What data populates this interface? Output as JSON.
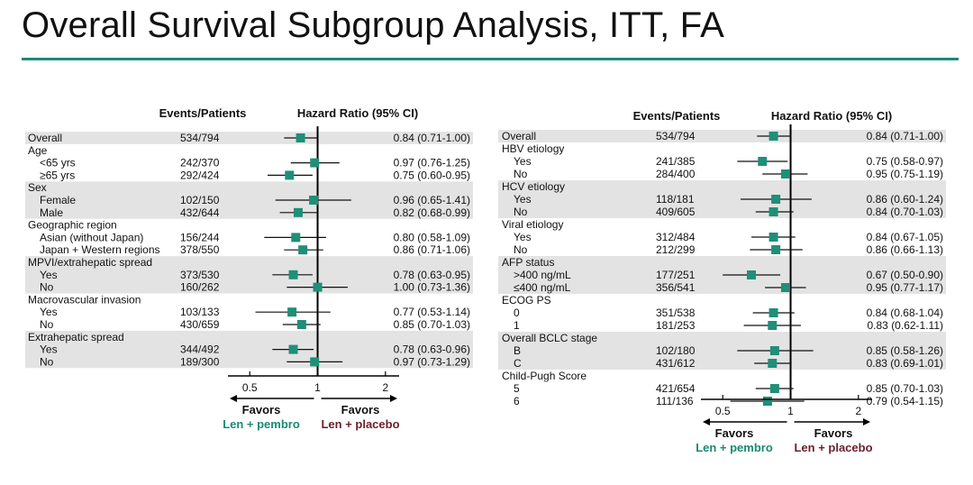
{
  "title": "Overall Survival Subgroup Analysis, ITT, FA",
  "colors": {
    "accent": "#1a8a74",
    "marker": "#1f8f78",
    "favor_left": "#1a8a74",
    "favor_right": "#6b1f2a",
    "shade": "#e3e3e3"
  },
  "chart_data": [
    {
      "type": "forest",
      "x_scale": "log",
      "xlim": [
        0.4,
        2.3
      ],
      "reference_line": 1,
      "header_events": "Events/Patients",
      "header_hr": "Hazard  Ratio (95% CI)",
      "ticks": [
        {
          "value": 0.5,
          "label": "0.5"
        },
        {
          "value": 1,
          "label": "1"
        },
        {
          "value": 2,
          "label": "2"
        }
      ],
      "favors_left": {
        "line1": "Favors",
        "line2": "Len + pembro"
      },
      "favors_right": {
        "line1": "Favors",
        "line2": "Len + placebo"
      },
      "rows": [
        {
          "label": "Overall",
          "indent": false,
          "shaded": true,
          "events": "534/794",
          "hr": 0.84,
          "lo": 0.71,
          "hi": 1.0,
          "ci_text": "0.84 (0.71-1.00)"
        },
        {
          "label": "Age",
          "indent": false,
          "shaded": false
        },
        {
          "label": "<65 yrs",
          "indent": true,
          "shaded": false,
          "events": "242/370",
          "hr": 0.97,
          "lo": 0.76,
          "hi": 1.25,
          "ci_text": "0.97 (0.76-1.25)"
        },
        {
          "label": "≥65 yrs",
          "indent": true,
          "shaded": false,
          "events": "292/424",
          "hr": 0.75,
          "lo": 0.6,
          "hi": 0.95,
          "ci_text": "0.75 (0.60-0.95)"
        },
        {
          "label": "Sex",
          "indent": false,
          "shaded": true
        },
        {
          "label": "Female",
          "indent": true,
          "shaded": true,
          "events": "102/150",
          "hr": 0.96,
          "lo": 0.65,
          "hi": 1.41,
          "ci_text": "0.96 (0.65-1.41)"
        },
        {
          "label": "Male",
          "indent": true,
          "shaded": true,
          "events": "432/644",
          "hr": 0.82,
          "lo": 0.68,
          "hi": 0.99,
          "ci_text": "0.82 (0.68-0.99)"
        },
        {
          "label": "Geographic region",
          "indent": false,
          "shaded": false
        },
        {
          "label": "Asian (without Japan)",
          "indent": true,
          "shaded": false,
          "events": "156/244",
          "hr": 0.8,
          "lo": 0.58,
          "hi": 1.09,
          "ci_text": "0.80 (0.58-1.09)"
        },
        {
          "label": "Japan + Western regions",
          "indent": true,
          "shaded": false,
          "events": "378/550",
          "hr": 0.86,
          "lo": 0.71,
          "hi": 1.06,
          "ci_text": "0.86 (0.71-1.06)"
        },
        {
          "label": "MPVI/extrahepatic spread",
          "indent": false,
          "shaded": true
        },
        {
          "label": "Yes",
          "indent": true,
          "shaded": true,
          "events": "373/530",
          "hr": 0.78,
          "lo": 0.63,
          "hi": 0.95,
          "ci_text": "0.78 (0.63-0.95)"
        },
        {
          "label": "No",
          "indent": true,
          "shaded": true,
          "events": "160/262",
          "hr": 1.0,
          "lo": 0.73,
          "hi": 1.36,
          "ci_text": "1.00 (0.73-1.36)"
        },
        {
          "label": "Macrovascular invasion",
          "indent": false,
          "shaded": false
        },
        {
          "label": "Yes",
          "indent": true,
          "shaded": false,
          "events": "103/133",
          "hr": 0.77,
          "lo": 0.53,
          "hi": 1.14,
          "ci_text": "0.77 (0.53-1.14)"
        },
        {
          "label": "No",
          "indent": true,
          "shaded": false,
          "events": "430/659",
          "hr": 0.85,
          "lo": 0.7,
          "hi": 1.03,
          "ci_text": "0.85 (0.70-1.03)"
        },
        {
          "label": "Extrahepatic spread",
          "indent": false,
          "shaded": true
        },
        {
          "label": "Yes",
          "indent": true,
          "shaded": true,
          "events": "344/492",
          "hr": 0.78,
          "lo": 0.63,
          "hi": 0.96,
          "ci_text": "0.78 (0.63-0.96)"
        },
        {
          "label": "No",
          "indent": true,
          "shaded": true,
          "events": "189/300",
          "hr": 0.97,
          "lo": 0.73,
          "hi": 1.29,
          "ci_text": "0.97 (0.73-1.29)"
        }
      ]
    },
    {
      "type": "forest",
      "x_scale": "log",
      "xlim": [
        0.4,
        2.3
      ],
      "reference_line": 1,
      "header_events": "Events/Patients",
      "header_hr": "Hazard  Ratio (95% CI)",
      "ticks": [
        {
          "value": 0.5,
          "label": "0.5"
        },
        {
          "value": 1,
          "label": "1"
        },
        {
          "value": 2,
          "label": "2"
        }
      ],
      "favors_left": {
        "line1": "Favors",
        "line2": "Len + pembro"
      },
      "favors_right": {
        "line1": "Favors",
        "line2": "Len + placebo"
      },
      "rows": [
        {
          "label": "Overall",
          "indent": false,
          "shaded": true,
          "events": "534/794",
          "hr": 0.84,
          "lo": 0.71,
          "hi": 1.0,
          "ci_text": "0.84 (0.71-1.00)"
        },
        {
          "label": "HBV etiology",
          "indent": false,
          "shaded": false
        },
        {
          "label": "Yes",
          "indent": true,
          "shaded": false,
          "events": "241/385",
          "hr": 0.75,
          "lo": 0.58,
          "hi": 0.97,
          "ci_text": "0.75 (0.58-0.97)"
        },
        {
          "label": "No",
          "indent": true,
          "shaded": false,
          "events": "284/400",
          "hr": 0.95,
          "lo": 0.75,
          "hi": 1.19,
          "ci_text": "0.95 (0.75-1.19)"
        },
        {
          "label": "HCV etiology",
          "indent": false,
          "shaded": true
        },
        {
          "label": "Yes",
          "indent": true,
          "shaded": true,
          "events": "118/181",
          "hr": 0.86,
          "lo": 0.6,
          "hi": 1.24,
          "ci_text": "0.86 (0.60-1.24)"
        },
        {
          "label": "No",
          "indent": true,
          "shaded": true,
          "events": "409/605",
          "hr": 0.84,
          "lo": 0.7,
          "hi": 1.03,
          "ci_text": "0.84 (0.70-1.03)"
        },
        {
          "label": "Viral etiology",
          "indent": false,
          "shaded": false
        },
        {
          "label": "Yes",
          "indent": true,
          "shaded": false,
          "events": "312/484",
          "hr": 0.84,
          "lo": 0.67,
          "hi": 1.05,
          "ci_text": "0.84 (0.67-1.05)"
        },
        {
          "label": "No",
          "indent": true,
          "shaded": false,
          "events": "212/299",
          "hr": 0.86,
          "lo": 0.66,
          "hi": 1.13,
          "ci_text": "0.86 (0.66-1.13)"
        },
        {
          "label": "AFP status",
          "indent": false,
          "shaded": true
        },
        {
          "label": ">400 ng/mL",
          "indent": true,
          "shaded": true,
          "events": "177/251",
          "hr": 0.67,
          "lo": 0.5,
          "hi": 0.9,
          "ci_text": "0.67 (0.50-0.90)"
        },
        {
          "label": "≤400 ng/mL",
          "indent": true,
          "shaded": true,
          "events": "356/541",
          "hr": 0.95,
          "lo": 0.77,
          "hi": 1.17,
          "ci_text": "0.95 (0.77-1.17)"
        },
        {
          "label": "ECOG PS",
          "indent": false,
          "shaded": false
        },
        {
          "label": "0",
          "indent": true,
          "shaded": false,
          "events": "351/538",
          "hr": 0.84,
          "lo": 0.68,
          "hi": 1.04,
          "ci_text": "0.84 (0.68-1.04)"
        },
        {
          "label": "1",
          "indent": true,
          "shaded": false,
          "events": "181/253",
          "hr": 0.83,
          "lo": 0.62,
          "hi": 1.11,
          "ci_text": "0.83 (0.62-1.11)"
        },
        {
          "label": "Overall BCLC stage",
          "indent": false,
          "shaded": true
        },
        {
          "label": "B",
          "indent": true,
          "shaded": true,
          "events": "102/180",
          "hr": 0.85,
          "lo": 0.58,
          "hi": 1.26,
          "ci_text": "0.85 (0.58-1.26)"
        },
        {
          "label": "C",
          "indent": true,
          "shaded": true,
          "events": "431/612",
          "hr": 0.83,
          "lo": 0.69,
          "hi": 1.01,
          "ci_text": "0.83 (0.69-1.01)"
        },
        {
          "label": "Child-Pugh Score",
          "indent": false,
          "shaded": false
        },
        {
          "label": "5",
          "indent": true,
          "shaded": false,
          "events": "421/654",
          "hr": 0.85,
          "lo": 0.7,
          "hi": 1.03,
          "ci_text": "0.85 (0.70-1.03)"
        },
        {
          "label": "6",
          "indent": true,
          "shaded": false,
          "events": "111/136",
          "hr": 0.79,
          "lo": 0.54,
          "hi": 1.15,
          "ci_text": "0.79 (0.54-1.15)"
        }
      ]
    }
  ]
}
